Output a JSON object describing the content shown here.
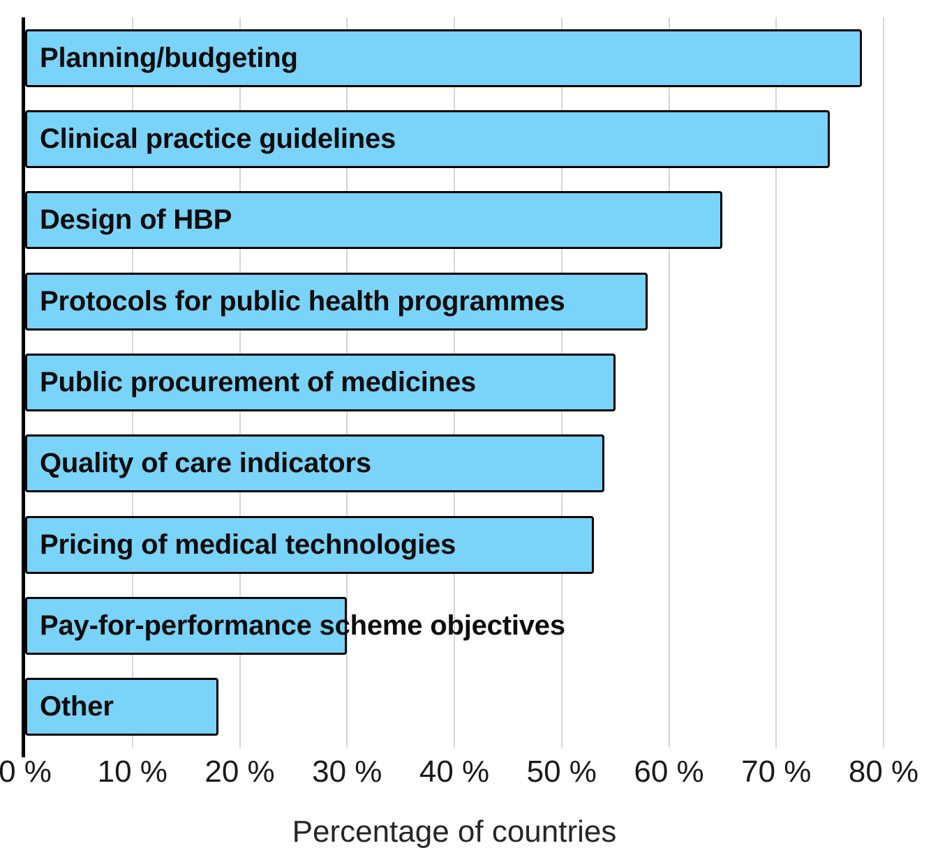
{
  "chart_data": {
    "type": "bar",
    "orientation": "horizontal",
    "categories": [
      "Planning/budgeting",
      "Clinical practice guidelines",
      "Design of HBP",
      "Protocols for public health programmes",
      "Public procurement of medicines",
      "Quality of care indicators",
      "Pricing of medical technologies",
      "Pay-for-performance scheme objectives",
      "Other"
    ],
    "values": [
      78,
      75,
      65,
      58,
      55,
      54,
      53,
      30,
      18
    ],
    "value_unit": "%",
    "xlabel": "Percentage of countries",
    "ylabel": "",
    "title": "",
    "xlim": [
      0,
      80
    ],
    "x_ticks": [
      {
        "value": 0,
        "label": "0 %"
      },
      {
        "value": 10,
        "label": "10 %"
      },
      {
        "value": 20,
        "label": "20 %"
      },
      {
        "value": 30,
        "label": "30 %"
      },
      {
        "value": 40,
        "label": "40 %"
      },
      {
        "value": 50,
        "label": "50 %"
      },
      {
        "value": 60,
        "label": "60 %"
      },
      {
        "value": 70,
        "label": "70 %"
      },
      {
        "value": 80,
        "label": "80 %"
      }
    ],
    "grid": "vertical",
    "legend": "none",
    "colors": {
      "bar_fill": "#7ad3f9",
      "bar_border": "#000000",
      "gridline": "#d6d6d6",
      "axis_line": "#000000",
      "label_text": "#0d0d0d",
      "tick_text": "#1a1a1a",
      "background": "#ffffff"
    }
  }
}
